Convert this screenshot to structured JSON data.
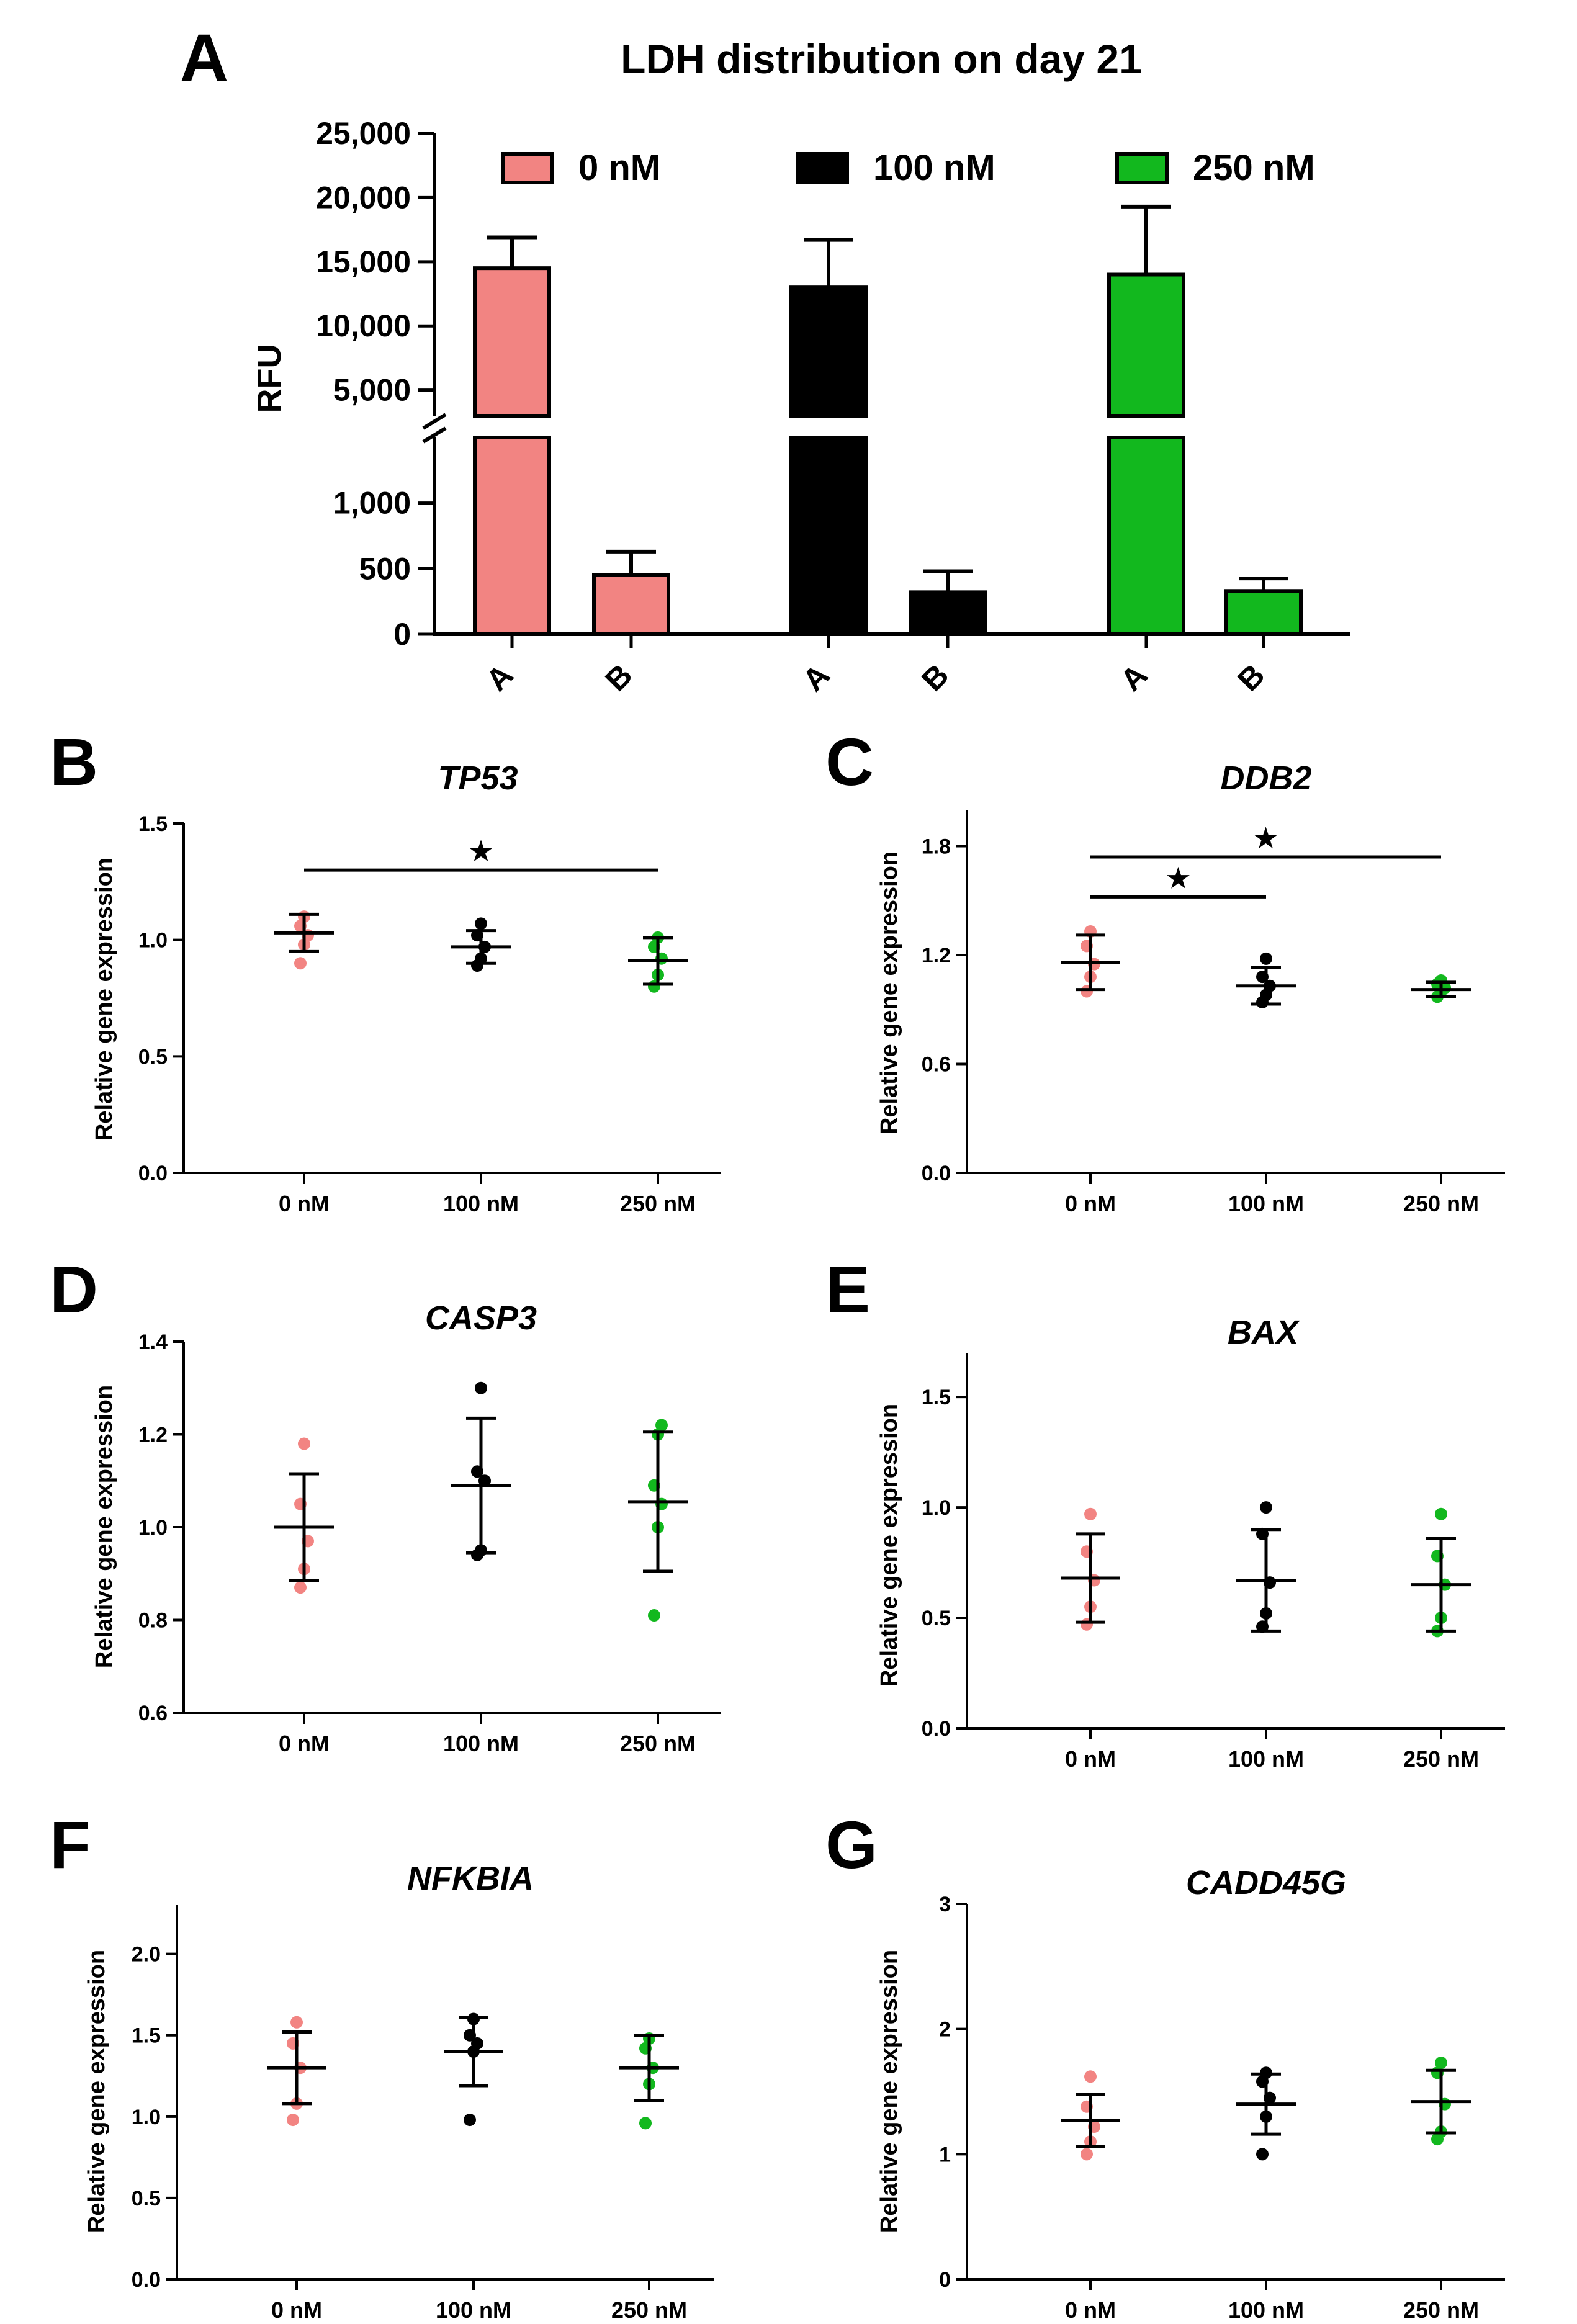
{
  "colors": {
    "c0": "#f28482",
    "c100": "#000000",
    "c250": "#12b81e",
    "axis": "#000000"
  },
  "chart_data": [
    {
      "panel": "A",
      "type": "bar",
      "title": "LDH distribution on day 21",
      "ylabel": "RFU",
      "yticks_upper": [
        "25,000",
        "20,000",
        "15,000",
        "10,000",
        "5,000"
      ],
      "yticks_lower": [
        "1,000",
        "500",
        "0"
      ],
      "upper_range": [
        3000,
        25000
      ],
      "lower_range": [
        0,
        1500
      ],
      "legend": [
        {
          "label": "0 nM",
          "color_key": "c0"
        },
        {
          "label": "100 nM",
          "color_key": "c100"
        },
        {
          "label": "250 nM",
          "color_key": "c250"
        }
      ],
      "series": [
        {
          "name": "0 nM",
          "color_key": "c0",
          "categories": [
            "A",
            "B"
          ],
          "values": [
            14500,
            450
          ],
          "errors": [
            2400,
            180
          ]
        },
        {
          "name": "100 nM",
          "color_key": "c100",
          "categories": [
            "A",
            "B"
          ],
          "values": [
            13000,
            320
          ],
          "errors": [
            3700,
            160
          ]
        },
        {
          "name": "250 nM",
          "color_key": "c250",
          "categories": [
            "A",
            "B"
          ],
          "values": [
            14000,
            330
          ],
          "errors": [
            5300,
            95
          ]
        }
      ]
    },
    {
      "panel": "B",
      "type": "scatter",
      "title": "TP53",
      "ylabel": "Relative gene expression",
      "ylim": [
        0,
        1.5
      ],
      "yticks": [
        "0.0",
        "0.5",
        "1.0",
        "1.5"
      ],
      "categories": [
        "0 nM",
        "100 nM",
        "250 nM"
      ],
      "groups": [
        {
          "color_key": "c0",
          "mean": 1.03,
          "sd": 0.08,
          "points": [
            0.9,
            0.98,
            1.02,
            1.06,
            1.1
          ]
        },
        {
          "color_key": "c100",
          "mean": 0.97,
          "sd": 0.07,
          "points": [
            0.89,
            0.92,
            0.97,
            1.02,
            1.07
          ]
        },
        {
          "color_key": "c250",
          "mean": 0.91,
          "sd": 0.1,
          "points": [
            0.8,
            0.85,
            0.92,
            0.97,
            1.01
          ]
        }
      ],
      "sig": [
        {
          "from": 0,
          "to": 2,
          "y": 1.3,
          "label": "★"
        }
      ]
    },
    {
      "panel": "C",
      "type": "scatter",
      "title": "DDB2",
      "ylabel": "Relative gene expression",
      "ylim": [
        0,
        2.0
      ],
      "yticks": [
        "0.0",
        "0.6",
        "1.2",
        "1.8"
      ],
      "ytick_values": [
        0,
        0.6,
        1.2,
        1.8
      ],
      "categories": [
        "0 nM",
        "100 nM",
        "250 nM"
      ],
      "groups": [
        {
          "color_key": "c0",
          "mean": 1.16,
          "sd": 0.15,
          "points": [
            1.0,
            1.08,
            1.15,
            1.25,
            1.33
          ]
        },
        {
          "color_key": "c100",
          "mean": 1.03,
          "sd": 0.1,
          "points": [
            0.94,
            0.98,
            1.03,
            1.08,
            1.18
          ]
        },
        {
          "color_key": "c250",
          "mean": 1.01,
          "sd": 0.04,
          "points": [
            0.97,
            1.0,
            1.02,
            1.04,
            1.06
          ]
        }
      ],
      "sig": [
        {
          "from": 0,
          "to": 1,
          "y": 1.52,
          "label": "★"
        },
        {
          "from": 0,
          "to": 2,
          "y": 1.74,
          "label": "★"
        }
      ]
    },
    {
      "panel": "D",
      "type": "scatter",
      "title": "CASP3",
      "ylabel": "Relative gene expression",
      "ylim": [
        0.6,
        1.4
      ],
      "yticks": [
        "0.6",
        "0.8",
        "1.0",
        "1.2",
        "1.4"
      ],
      "categories": [
        "0 nM",
        "100 nM",
        "250 nM"
      ],
      "groups": [
        {
          "color_key": "c0",
          "mean": 1.0,
          "sd": 0.115,
          "points": [
            0.87,
            0.91,
            0.97,
            1.05,
            1.18
          ]
        },
        {
          "color_key": "c100",
          "mean": 1.09,
          "sd": 0.145,
          "points": [
            0.94,
            0.95,
            1.1,
            1.12,
            1.3
          ]
        },
        {
          "color_key": "c250",
          "mean": 1.055,
          "sd": 0.15,
          "points": [
            0.81,
            1.0,
            1.05,
            1.09,
            1.2,
            1.22
          ]
        }
      ]
    },
    {
      "panel": "E",
      "type": "scatter",
      "title": "BAX",
      "ylabel": "Relative gene expression",
      "ylim": [
        0,
        1.7
      ],
      "yticks": [
        "0.0",
        "0.5",
        "1.0",
        "1.5"
      ],
      "ytick_values": [
        0,
        0.5,
        1.0,
        1.5
      ],
      "categories": [
        "0 nM",
        "100 nM",
        "250 nM"
      ],
      "groups": [
        {
          "color_key": "c0",
          "mean": 0.68,
          "sd": 0.2,
          "points": [
            0.47,
            0.55,
            0.67,
            0.8,
            0.97
          ]
        },
        {
          "color_key": "c100",
          "mean": 0.67,
          "sd": 0.23,
          "points": [
            0.46,
            0.52,
            0.66,
            0.88,
            1.0
          ]
        },
        {
          "color_key": "c250",
          "mean": 0.65,
          "sd": 0.21,
          "points": [
            0.44,
            0.5,
            0.65,
            0.78,
            0.97
          ]
        }
      ]
    },
    {
      "panel": "F",
      "type": "scatter",
      "title": "NFKBIA",
      "ylabel": "Relative gene expression",
      "ylim": [
        0,
        2.3
      ],
      "yticks": [
        "0.0",
        "0.5",
        "1.0",
        "1.5",
        "2.0"
      ],
      "ytick_values": [
        0,
        0.5,
        1.0,
        1.5,
        2.0
      ],
      "categories": [
        "0 nM",
        "100 nM",
        "250 nM"
      ],
      "groups": [
        {
          "color_key": "c0",
          "mean": 1.3,
          "sd": 0.22,
          "points": [
            0.98,
            1.08,
            1.3,
            1.45,
            1.58
          ]
        },
        {
          "color_key": "c100",
          "mean": 1.4,
          "sd": 0.21,
          "points": [
            0.98,
            1.4,
            1.45,
            1.5,
            1.6
          ]
        },
        {
          "color_key": "c250",
          "mean": 1.3,
          "sd": 0.2,
          "points": [
            0.96,
            1.2,
            1.3,
            1.42,
            1.48
          ]
        }
      ]
    },
    {
      "panel": "G",
      "type": "scatter",
      "title": "CADD45G",
      "ylabel": "Relative gene expression",
      "ylim": [
        0,
        3
      ],
      "yticks": [
        "0",
        "1",
        "2",
        "3"
      ],
      "categories": [
        "0 nM",
        "100 nM",
        "250 nM"
      ],
      "groups": [
        {
          "color_key": "c0",
          "mean": 1.27,
          "sd": 0.21,
          "points": [
            1.0,
            1.1,
            1.22,
            1.38,
            1.62
          ]
        },
        {
          "color_key": "c100",
          "mean": 1.4,
          "sd": 0.24,
          "points": [
            1.0,
            1.3,
            1.45,
            1.58,
            1.65
          ]
        },
        {
          "color_key": "c250",
          "mean": 1.42,
          "sd": 0.25,
          "points": [
            1.12,
            1.18,
            1.4,
            1.65,
            1.73
          ]
        }
      ]
    }
  ]
}
